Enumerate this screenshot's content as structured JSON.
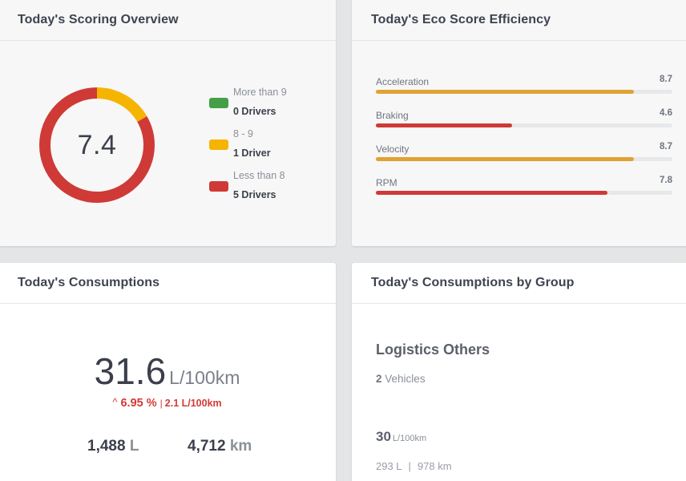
{
  "scoring": {
    "title": "Today's Scoring Overview",
    "score": "7.4",
    "segments": [
      {
        "label": "More than 9",
        "count": "0 Drivers",
        "color": "#43a047",
        "value": 0
      },
      {
        "label": "8 - 9",
        "count": "1 Driver",
        "color": "#f5b400",
        "value": 1
      },
      {
        "label": "Less than 8",
        "count": "5 Drivers",
        "color": "#cf3a37",
        "value": 5
      }
    ]
  },
  "eco": {
    "title": "Today's Eco Score Efficiency",
    "max_score": 10,
    "bars": [
      {
        "label": "Acceleration",
        "value": "8.7",
        "color": "#e0a233"
      },
      {
        "label": "Braking",
        "value": "4.6",
        "color": "#cf3a37"
      },
      {
        "label": "Velocity",
        "value": "8.7",
        "color": "#e0a233"
      },
      {
        "label": "RPM",
        "value": "7.8",
        "color": "#cf3a37"
      }
    ]
  },
  "consumptions": {
    "title": "Today's Consumptions",
    "value": "31.6",
    "unit": "L/100km",
    "delta_arrow": "^",
    "delta_pct": "6.95 %",
    "delta_sep": "|",
    "delta_abs": "2.1 L/100km",
    "liters_value": "1,488",
    "liters_unit": "L",
    "distance_value": "4,712",
    "distance_unit": "km"
  },
  "groups": {
    "title": "Today's Consumptions by Group",
    "group_name": "Logistics Others",
    "vehicles_count": "2",
    "vehicles_label": "Vehicles",
    "consumption_value": "30",
    "consumption_unit": "L/100km",
    "liters": "293 L",
    "sep": "|",
    "distance": "978 km"
  }
}
